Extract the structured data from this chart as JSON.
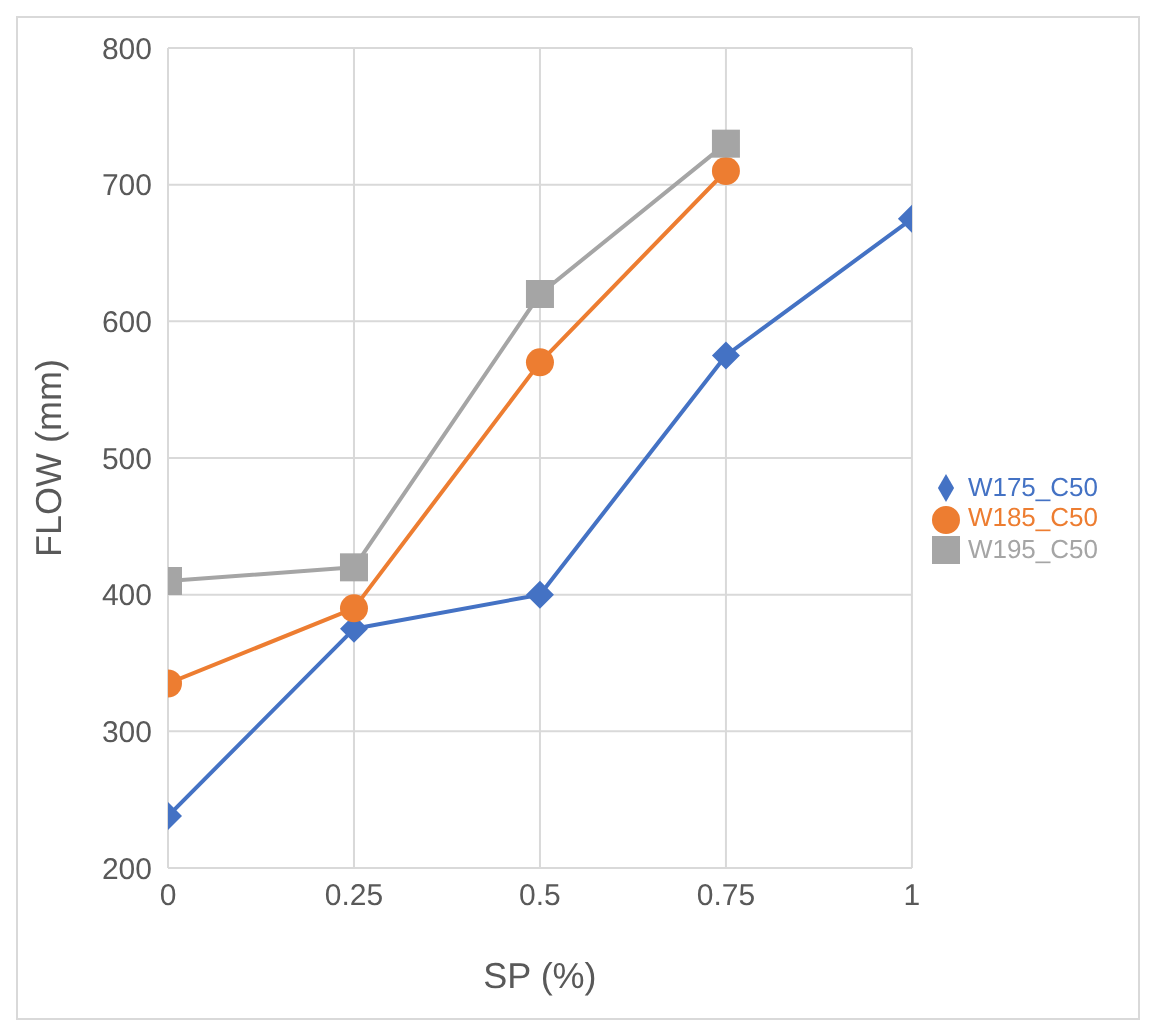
{
  "chart_data": {
    "type": "line",
    "xlabel": "SP (%)",
    "ylabel": "FLOW (mm)",
    "x": [
      0,
      0.25,
      0.5,
      0.75,
      1
    ],
    "series": [
      {
        "name": "W175_C50",
        "color": "#4472c4",
        "marker": "diamond",
        "values": [
          238,
          375,
          400,
          575,
          675
        ]
      },
      {
        "name": "W185_C50",
        "color": "#ed7d31",
        "marker": "circle",
        "values": [
          335,
          390,
          570,
          710,
          null
        ]
      },
      {
        "name": "W195_C50",
        "color": "#a5a5a5",
        "marker": "square",
        "values": [
          410,
          420,
          620,
          730,
          null
        ]
      }
    ],
    "xlim": [
      0,
      1
    ],
    "xticks": [
      0,
      0.25,
      0.5,
      0.75,
      1
    ],
    "ylim": [
      200,
      800
    ],
    "yticks": [
      200,
      300,
      400,
      500,
      600,
      700,
      800
    ],
    "grid": true,
    "legend": "right"
  }
}
